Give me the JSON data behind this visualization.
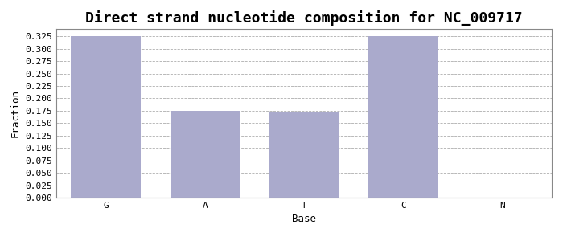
{
  "title": "Direct strand nucleotide composition for NC_009717",
  "xlabel": "Base",
  "ylabel": "Fraction",
  "categories": [
    "G",
    "A",
    "T",
    "C",
    "N"
  ],
  "values": [
    0.326,
    0.175,
    0.174,
    0.326,
    0.0
  ],
  "bar_color": "#aaaacc",
  "bar_edgecolor": "#aaaacc",
  "ylim": [
    0.0,
    0.34
  ],
  "ytick_values": [
    0.0,
    0.025,
    0.05,
    0.075,
    0.1,
    0.125,
    0.15,
    0.175,
    0.2,
    0.225,
    0.25,
    0.275,
    0.3,
    0.325
  ],
  "title_fontsize": 13,
  "label_fontsize": 9,
  "tick_fontsize": 8,
  "grid_color": "#999999",
  "background_color": "#ffffff",
  "figure_width": 7.0,
  "figure_height": 3.0,
  "dpi": 100
}
